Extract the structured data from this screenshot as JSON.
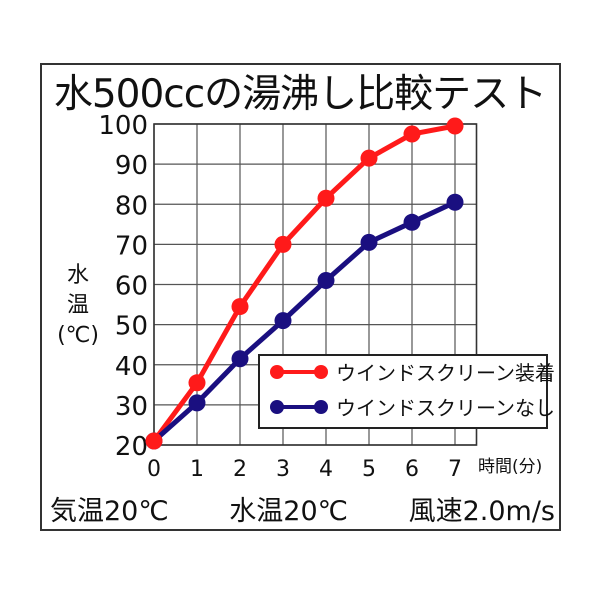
{
  "title": "水500ccの湯沸し比較テスト",
  "footer": {
    "air_temp": "気温20℃",
    "water_temp": "水温20℃",
    "wind_speed": "風速2.0m/s"
  },
  "colors": {
    "red_series": "#ff1a1a",
    "blue_series": "#1a0f80",
    "grid": "#555555",
    "frame": "#333333"
  },
  "chart_data": {
    "type": "line",
    "title": "水500ccの湯沸し比較テスト",
    "xlabel": "時間(分)",
    "ylabel": "水温(℃)",
    "ylabel_lines": [
      "水",
      "温",
      "(℃)"
    ],
    "x": [
      0,
      1,
      2,
      3,
      4,
      5,
      6,
      7
    ],
    "x_ticks": [
      "0",
      "1",
      "2",
      "3",
      "4",
      "5",
      "6",
      "7"
    ],
    "y_ticks": [
      "20",
      "30",
      "40",
      "50",
      "60",
      "70",
      "80",
      "90",
      "100"
    ],
    "xlim": [
      0,
      7.5
    ],
    "ylim": [
      20,
      100
    ],
    "grid": true,
    "legend_position": "lower right (inside plot)",
    "series": [
      {
        "name": "ウインドスクリーン装着",
        "color": "#ff1a1a",
        "values": [
          21,
          35.5,
          54.5,
          70,
          81.5,
          91.5,
          97.5,
          99.5
        ]
      },
      {
        "name": "ウインドスクリーンなし",
        "color": "#1a0f80",
        "values": [
          21,
          30.5,
          41.5,
          51,
          61,
          70.5,
          75.5,
          80.5
        ]
      }
    ],
    "annotations": [
      "気温20℃",
      "水温20℃",
      "風速2.0m/s"
    ]
  }
}
